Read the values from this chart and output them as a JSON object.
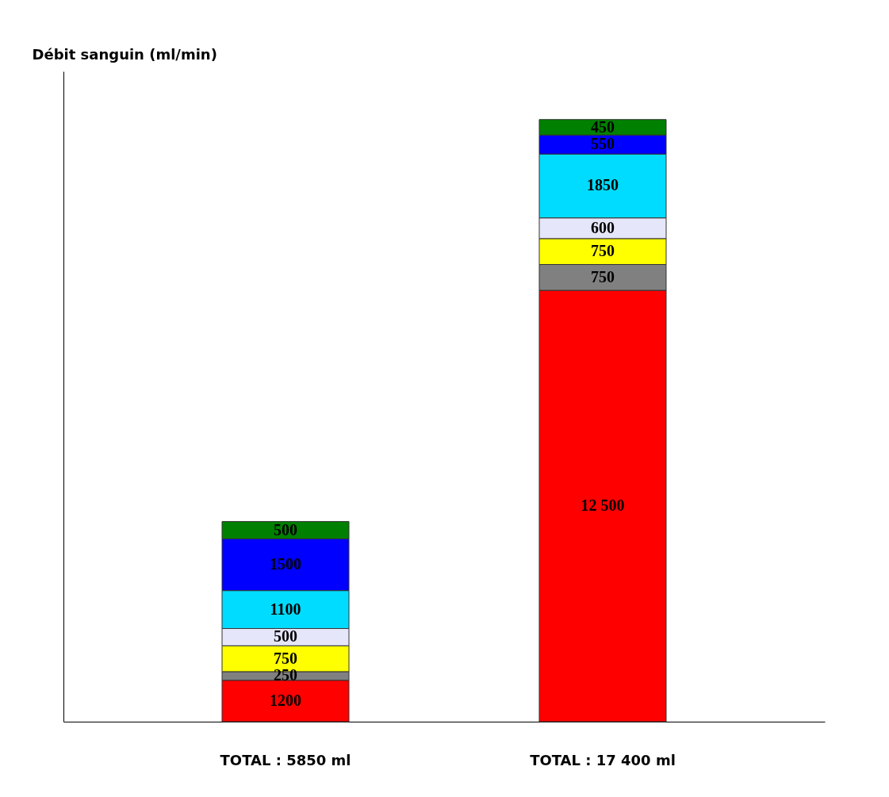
{
  "chart_data": {
    "type": "bar",
    "stacked": true,
    "ylabel": "Débit sanguin (ml/min)",
    "categories": [
      null,
      null
    ],
    "series": [
      {
        "color": "#ff0000",
        "values": [
          1200,
          12500
        ],
        "value_labels": [
          "1200",
          "12 500"
        ]
      },
      {
        "color": "#808080",
        "values": [
          250,
          750
        ],
        "value_labels": [
          "250",
          "750"
        ]
      },
      {
        "color": "#ffff00",
        "values": [
          750,
          750
        ],
        "value_labels": [
          "750",
          "750"
        ]
      },
      {
        "color": "#e6e6fa",
        "values": [
          500,
          600
        ],
        "value_labels": [
          "500",
          "600"
        ]
      },
      {
        "color": "#00dcff",
        "values": [
          1100,
          1850
        ],
        "value_labels": [
          "1100",
          "1850"
        ]
      },
      {
        "color": "#0000ff",
        "values": [
          1500,
          550
        ],
        "value_labels": [
          "1500",
          "550"
        ]
      },
      {
        "color": "#008000",
        "values": [
          500,
          450
        ],
        "value_labels": [
          "500",
          "450"
        ]
      }
    ],
    "annotations": [
      "TOTAL : 5850 ml",
      "TOTAL : 17 400 ml"
    ],
    "grid": false
  }
}
